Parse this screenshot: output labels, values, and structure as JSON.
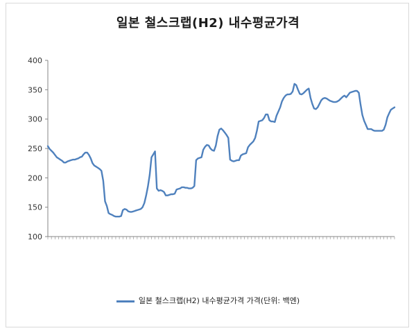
{
  "chart_data": {
    "type": "line",
    "title": "일본 철스크랩(H2) 내수평균가격",
    "xlabel": "",
    "ylabel": "",
    "ylim": [
      100,
      400
    ],
    "yticks": [
      100,
      150,
      200,
      250,
      300,
      350,
      400
    ],
    "grid": false,
    "legend_position": "bottom",
    "series": [
      {
        "name": "일본 철스크랩(H2) 내수평균가격 가격(단위: 백엔)",
        "color": "#4f81bd",
        "values": [
          254,
          249,
          246,
          243,
          239,
          235,
          233,
          231,
          229,
          226,
          226,
          228,
          229,
          230,
          231,
          231,
          232,
          233,
          235,
          236,
          240,
          243,
          243,
          239,
          233,
          225,
          221,
          219,
          217,
          215,
          212,
          195,
          160,
          152,
          140,
          138,
          137,
          135,
          134,
          134,
          134,
          135,
          145,
          147,
          146,
          143,
          142,
          142,
          143,
          144,
          145,
          146,
          147,
          150,
          157,
          170,
          185,
          205,
          235,
          240,
          245,
          182,
          178,
          179,
          178,
          176,
          170,
          170,
          171,
          172,
          172,
          173,
          180,
          181,
          182,
          184,
          184,
          183,
          183,
          182,
          182,
          183,
          186,
          230,
          233,
          234,
          235,
          248,
          253,
          256,
          255,
          250,
          247,
          246,
          255,
          271,
          282,
          284,
          281,
          277,
          273,
          268,
          231,
          229,
          228,
          229,
          230,
          230,
          238,
          240,
          241,
          242,
          252,
          256,
          259,
          262,
          268,
          280,
          296,
          297,
          298,
          302,
          308,
          308,
          298,
          296,
          296,
          295,
          306,
          313,
          320,
          330,
          336,
          340,
          342,
          342,
          343,
          347,
          360,
          358,
          350,
          343,
          342,
          344,
          347,
          350,
          352,
          336,
          326,
          318,
          317,
          320,
          326,
          332,
          335,
          336,
          335,
          333,
          331,
          330,
          329,
          329,
          330,
          332,
          335,
          338,
          340,
          337,
          341,
          345,
          346,
          347,
          348,
          348,
          345,
          325,
          307,
          297,
          290,
          283,
          283,
          283,
          281,
          280,
          280,
          280,
          280,
          280,
          282,
          290,
          303,
          310,
          316,
          318,
          320
        ]
      }
    ]
  }
}
